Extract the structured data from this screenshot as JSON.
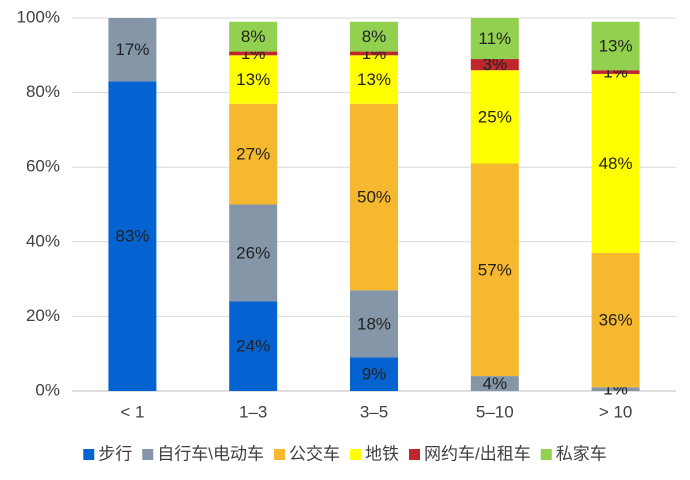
{
  "chart_data": {
    "type": "stacked_bar",
    "categories": [
      "< 1",
      "1–3",
      "3–5",
      "5–10",
      "> 10"
    ],
    "series": [
      {
        "name": "步行",
        "color": "#0563d1",
        "values": [
          83,
          24,
          9,
          0,
          0
        ],
        "value_labels": [
          "83%",
          "24%",
          "9%",
          null,
          null
        ]
      },
      {
        "name": "自行车\\电动车",
        "color": "#8496a8",
        "values": [
          17,
          26,
          18,
          4,
          1
        ],
        "value_labels": [
          "17%",
          "26%",
          "18%",
          "4%",
          "1%"
        ]
      },
      {
        "name": "公交车",
        "color": "#f5b82e",
        "values": [
          0,
          27,
          50,
          57,
          36
        ],
        "value_labels": [
          null,
          "27%",
          "50%",
          "57%",
          "36%"
        ]
      },
      {
        "name": "地铁",
        "color": "#ffff00",
        "values": [
          0,
          13,
          13,
          25,
          48
        ],
        "value_labels": [
          null,
          "13%",
          "13%",
          "25%",
          "48%"
        ]
      },
      {
        "name": "网约车/出租车",
        "color": "#c0272d",
        "values": [
          0,
          1,
          1,
          3,
          1
        ],
        "value_labels": [
          null,
          "1%",
          "1%",
          "3%",
          "1%"
        ]
      },
      {
        "name": "私家车",
        "color": "#92d050",
        "values": [
          0,
          8,
          8,
          11,
          13
        ],
        "value_labels": [
          null,
          "8%",
          "8%",
          "11%",
          "13%"
        ]
      }
    ],
    "ylim": [
      0,
      100
    ],
    "yticks": [
      {
        "value": 0,
        "label": "0%"
      },
      {
        "value": 20,
        "label": "20%"
      },
      {
        "value": 40,
        "label": "40%"
      },
      {
        "value": 60,
        "label": "60%"
      },
      {
        "value": 80,
        "label": "80%"
      },
      {
        "value": 100,
        "label": "100%"
      }
    ],
    "grid": true,
    "legend": "bottom"
  }
}
